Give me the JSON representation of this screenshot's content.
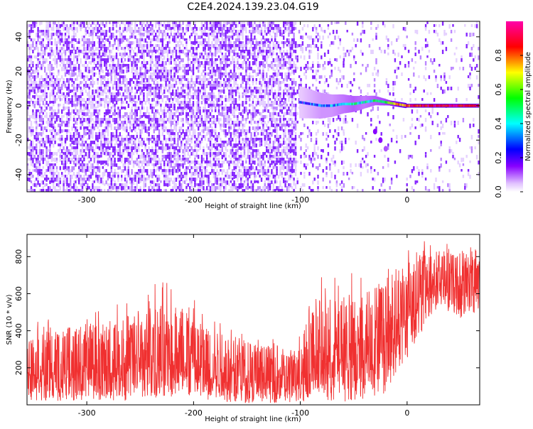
{
  "figure_title": "C2E4.2024.139.23.04.G19",
  "chart_data": [
    {
      "type": "heatmap",
      "title": "",
      "xlabel": "Height of straight line (km)",
      "ylabel": "Frequency (Hz)",
      "xlim": [
        -356,
        68
      ],
      "ylim": [
        -50,
        49
      ],
      "x_ticks": [
        -300,
        -200,
        -100,
        0
      ],
      "x_tick_labels": [
        "-300",
        "-200",
        "-100",
        "0"
      ],
      "y_ticks": [
        -40,
        -20,
        0,
        20,
        40
      ],
      "y_tick_labels": [
        "-40",
        "-20",
        "0",
        "20",
        "40"
      ],
      "colorbar": {
        "label": "Normalized spectral amplitude",
        "range": [
          0,
          1
        ],
        "ticks": [
          0,
          0.2,
          0.4,
          0.6,
          0.8
        ],
        "tick_labels": [
          "0.0",
          "0.2",
          "0.4",
          "0.6",
          "0.8"
        ],
        "colormap": [
          "#ffffff",
          "#e8c8ff",
          "#8800ff",
          "#0000ff",
          "#00ffff",
          "#00ff00",
          "#ffff00",
          "#ff0000",
          "#ff00aa"
        ]
      },
      "regions": [
        {
          "x_range": [
            -356,
            -105
          ],
          "freq_range": [
            -50,
            49
          ],
          "amplitude": 0.12,
          "pattern": "broadband noise"
        },
        {
          "x_range": [
            -105,
            -60
          ],
          "freq_range": [
            -50,
            49
          ],
          "amplitude": 0.04,
          "pattern": "sparse noise"
        },
        {
          "x_range": [
            -60,
            68
          ],
          "freq_range": [
            -50,
            49
          ],
          "amplitude": 0.02,
          "pattern": "very sparse noise"
        }
      ],
      "signal_trace": [
        {
          "x": -100,
          "freq": 2,
          "amplitude": 0.35
        },
        {
          "x": -90,
          "freq": 1,
          "amplitude": 0.4
        },
        {
          "x": -80,
          "freq": 0,
          "amplitude": 0.45
        },
        {
          "x": -70,
          "freq": 0,
          "amplitude": 0.45
        },
        {
          "x": -60,
          "freq": 1,
          "amplitude": 0.5
        },
        {
          "x": -50,
          "freq": 1,
          "amplitude": 0.55
        },
        {
          "x": -40,
          "freq": 2,
          "amplitude": 0.5
        },
        {
          "x": -30,
          "freq": 3,
          "amplitude": 0.55
        },
        {
          "x": -20,
          "freq": 2,
          "amplitude": 0.6
        },
        {
          "x": -10,
          "freq": 1,
          "amplitude": 0.75
        },
        {
          "x": 0,
          "freq": 0,
          "amplitude": 0.85
        },
        {
          "x": 10,
          "freq": 0,
          "amplitude": 0.9
        },
        {
          "x": 20,
          "freq": 0,
          "amplitude": 0.92
        },
        {
          "x": 40,
          "freq": 0,
          "amplitude": 0.92
        },
        {
          "x": 68,
          "freq": 0,
          "amplitude": 0.92
        }
      ],
      "secondary_trace": [
        {
          "x": -30,
          "freq": -15,
          "amplitude": 0.25
        },
        {
          "x": -25,
          "freq": -20,
          "amplitude": 0.25
        },
        {
          "x": -20,
          "freq": -25,
          "amplitude": 0.2
        }
      ]
    },
    {
      "type": "line",
      "title": "",
      "xlabel": "Height of straight line (km)",
      "ylabel": "SNR (10 * v/v)",
      "xlim": [
        -356,
        68
      ],
      "ylim": [
        0,
        920
      ],
      "x_ticks": [
        -300,
        -200,
        -100,
        0
      ],
      "x_tick_labels": [
        "-300",
        "-200",
        "-100",
        "0"
      ],
      "y_ticks": [
        200,
        400,
        600,
        800
      ],
      "y_tick_labels": [
        "200",
        "400",
        "600",
        "800"
      ],
      "color": "#f03030",
      "series": [
        {
          "x": [
            -356,
            -330,
            -300,
            -270,
            -250,
            -230,
            -215,
            -200,
            -185,
            -170,
            -150,
            -130,
            -115,
            -105,
            -90,
            -80,
            -70,
            -60,
            -50,
            -40,
            -30,
            -20,
            -10,
            0,
            10,
            20,
            30,
            40,
            50,
            60,
            68
          ],
          "mean": [
            180,
            180,
            185,
            200,
            210,
            230,
            250,
            230,
            200,
            170,
            150,
            130,
            125,
            140,
            200,
            230,
            240,
            260,
            270,
            290,
            320,
            380,
            440,
            500,
            560,
            620,
            650,
            640,
            650,
            680,
            690
          ],
          "min": [
            20,
            20,
            20,
            20,
            30,
            40,
            40,
            30,
            20,
            15,
            10,
            10,
            10,
            10,
            20,
            30,
            20,
            10,
            10,
            20,
            30,
            60,
            180,
            250,
            350,
            460,
            530,
            500,
            470,
            430,
            430
          ],
          "max": [
            460,
            480,
            520,
            560,
            620,
            680,
            660,
            580,
            520,
            470,
            420,
            380,
            320,
            380,
            680,
            690,
            700,
            710,
            720,
            740,
            750,
            820,
            860,
            880,
            900,
            910,
            900,
            880,
            880,
            900,
            900
          ]
        }
      ]
    }
  ]
}
